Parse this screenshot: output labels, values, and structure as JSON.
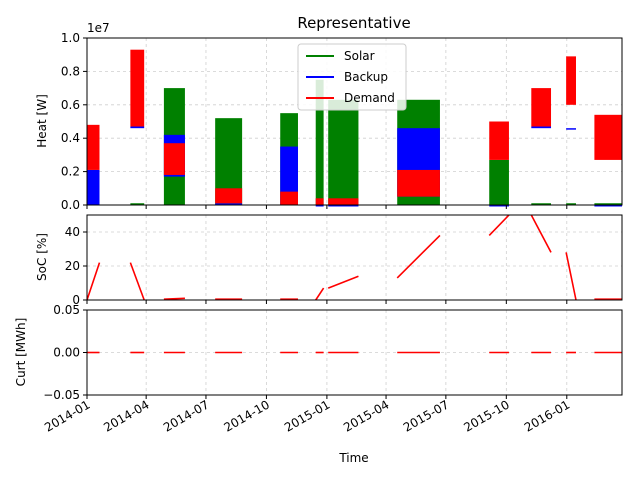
{
  "chart_data": [
    {
      "type": "area",
      "title": "Representative",
      "ylabel": "Heat [W]",
      "y_multiplier": "1e7",
      "ylim": [
        0,
        1.0
      ],
      "yticks": [
        "0.0",
        "0.2",
        "0.4",
        "0.6",
        "0.8",
        "1.0"
      ],
      "grid": true,
      "legend_position": "top-center",
      "series": [
        {
          "name": "Solar",
          "color": "#008000"
        },
        {
          "name": "Backup",
          "color": "#0000ff"
        },
        {
          "name": "Demand",
          "color": "#ff0000"
        }
      ],
      "segments": [
        {
          "start": "2014-01-01",
          "end": "2014-01-20",
          "solar": 0.0,
          "backup_low": 0.0,
          "backup_high": 0.21,
          "demand_low": 0.21,
          "demand_high": 0.48
        },
        {
          "start": "2014-03-08",
          "end": "2014-03-29",
          "solar": 0.0,
          "backup_low": 0.46,
          "backup_high": 0.47,
          "demand_low": 0.47,
          "demand_high": 0.93
        },
        {
          "start": "2014-04-28",
          "end": "2014-05-30",
          "solar": 0.7,
          "backup_low": 0.17,
          "backup_high": 0.42,
          "demand_low": 0.18,
          "demand_high": 0.37
        },
        {
          "start": "2014-07-15",
          "end": "2014-08-25",
          "solar": 0.52,
          "backup_low": 0.0,
          "backup_high": 0.01,
          "demand_low": 0.01,
          "demand_high": 0.1
        },
        {
          "start": "2014-10-22",
          "end": "2014-11-18",
          "solar": 0.55,
          "backup_low": 0.0,
          "backup_high": 0.35,
          "demand_low": 0.0,
          "demand_high": 0.08
        },
        {
          "start": "2014-12-15",
          "end": "2014-12-27",
          "solar": 0.75,
          "backup_low": 0.0,
          "backup_high": 0.0,
          "demand_low": 0.0,
          "demand_high": 0.04
        },
        {
          "start": "2015-01-03",
          "end": "2015-02-18",
          "solar": 0.63,
          "backup_low": 0.0,
          "backup_high": 0.0,
          "demand_low": 0.0,
          "demand_high": 0.04
        },
        {
          "start": "2015-04-18",
          "end": "2015-06-22",
          "solar": 0.63,
          "backup_low": 0.05,
          "backup_high": 0.46,
          "demand_low": 0.05,
          "demand_high": 0.21
        },
        {
          "start": "2015-09-05",
          "end": "2015-10-05",
          "solar": 0.27,
          "backup_low": 0.0,
          "backup_high": 0.0,
          "demand_low": 0.27,
          "demand_high": 0.5
        },
        {
          "start": "2015-11-08",
          "end": "2015-12-08",
          "solar": 0.0,
          "backup_low": 0.46,
          "backup_high": 0.47,
          "demand_low": 0.47,
          "demand_high": 0.7
        },
        {
          "start": "2015-12-31",
          "end": "2016-01-15",
          "solar": 0.0,
          "backup_low": 0.46,
          "backup_high": 0.46,
          "demand_low": 0.6,
          "demand_high": 0.89
        },
        {
          "start": "2016-02-12",
          "end": "2016-03-25",
          "solar": 0.0,
          "backup_low": 0.0,
          "backup_high": 0.0,
          "demand_low": 0.27,
          "demand_high": 0.54
        }
      ]
    },
    {
      "type": "line",
      "ylabel": "SoC [%]",
      "ylim": [
        0,
        50
      ],
      "yticks": [
        "0",
        "20",
        "40"
      ],
      "grid": true,
      "color": "#ff0000",
      "segments": [
        {
          "x": [
            "2014-01-01",
            "2014-01-20"
          ],
          "y": [
            0,
            22
          ]
        },
        {
          "x": [
            "2014-03-08",
            "2014-03-29"
          ],
          "y": [
            22,
            0
          ]
        },
        {
          "x": [
            "2014-04-28",
            "2014-05-30"
          ],
          "y": [
            0.5,
            1
          ]
        },
        {
          "x": [
            "2014-07-15",
            "2014-08-25"
          ],
          "y": [
            0.5,
            0.5
          ]
        },
        {
          "x": [
            "2014-10-22",
            "2014-11-18"
          ],
          "y": [
            0.5,
            0.5
          ]
        },
        {
          "x": [
            "2014-12-15",
            "2014-12-27"
          ],
          "y": [
            0,
            7
          ]
        },
        {
          "x": [
            "2015-01-03",
            "2015-02-18"
          ],
          "y": [
            7,
            14
          ]
        },
        {
          "x": [
            "2015-04-18",
            "2015-06-22"
          ],
          "y": [
            13,
            38
          ]
        },
        {
          "x": [
            "2015-09-05",
            "2015-10-05"
          ],
          "y": [
            38,
            50
          ]
        },
        {
          "x": [
            "2015-11-08",
            "2015-12-08"
          ],
          "y": [
            50,
            28
          ]
        },
        {
          "x": [
            "2015-12-31",
            "2016-01-15"
          ],
          "y": [
            28,
            0
          ]
        },
        {
          "x": [
            "2016-02-12",
            "2016-03-25"
          ],
          "y": [
            0.5,
            0.5
          ]
        }
      ]
    },
    {
      "type": "line",
      "ylabel": "Curt [MWh]",
      "xlabel": "Time",
      "ylim": [
        -0.05,
        0.05
      ],
      "yticks": [
        "−0.05",
        "0.00",
        "0.05"
      ],
      "grid": true,
      "color": "#ff0000",
      "segments": [
        {
          "x": [
            "2014-01-01",
            "2014-01-20"
          ],
          "y": [
            0,
            0
          ]
        },
        {
          "x": [
            "2014-03-08",
            "2014-03-29"
          ],
          "y": [
            0,
            0
          ]
        },
        {
          "x": [
            "2014-04-28",
            "2014-05-30"
          ],
          "y": [
            0,
            0
          ]
        },
        {
          "x": [
            "2014-07-15",
            "2014-08-25"
          ],
          "y": [
            0,
            0
          ]
        },
        {
          "x": [
            "2014-10-22",
            "2014-11-18"
          ],
          "y": [
            0,
            0
          ]
        },
        {
          "x": [
            "2014-12-15",
            "2014-12-27"
          ],
          "y": [
            0,
            0
          ]
        },
        {
          "x": [
            "2015-01-03",
            "2015-02-18"
          ],
          "y": [
            0,
            0
          ]
        },
        {
          "x": [
            "2015-04-18",
            "2015-06-22"
          ],
          "y": [
            0,
            0
          ]
        },
        {
          "x": [
            "2015-09-05",
            "2015-10-05"
          ],
          "y": [
            0,
            0
          ]
        },
        {
          "x": [
            "2015-11-08",
            "2015-12-08"
          ],
          "y": [
            0,
            0
          ]
        },
        {
          "x": [
            "2015-12-31",
            "2016-01-15"
          ],
          "y": [
            0,
            0
          ]
        },
        {
          "x": [
            "2016-02-12",
            "2016-03-25"
          ],
          "y": [
            0,
            0
          ]
        }
      ]
    }
  ],
  "x_axis": {
    "range": [
      "2014-01-01",
      "2016-03-25"
    ],
    "ticks": [
      "2014-01",
      "2014-04",
      "2014-07",
      "2014-10",
      "2015-01",
      "2015-04",
      "2015-07",
      "2015-10",
      "2016-01"
    ]
  }
}
